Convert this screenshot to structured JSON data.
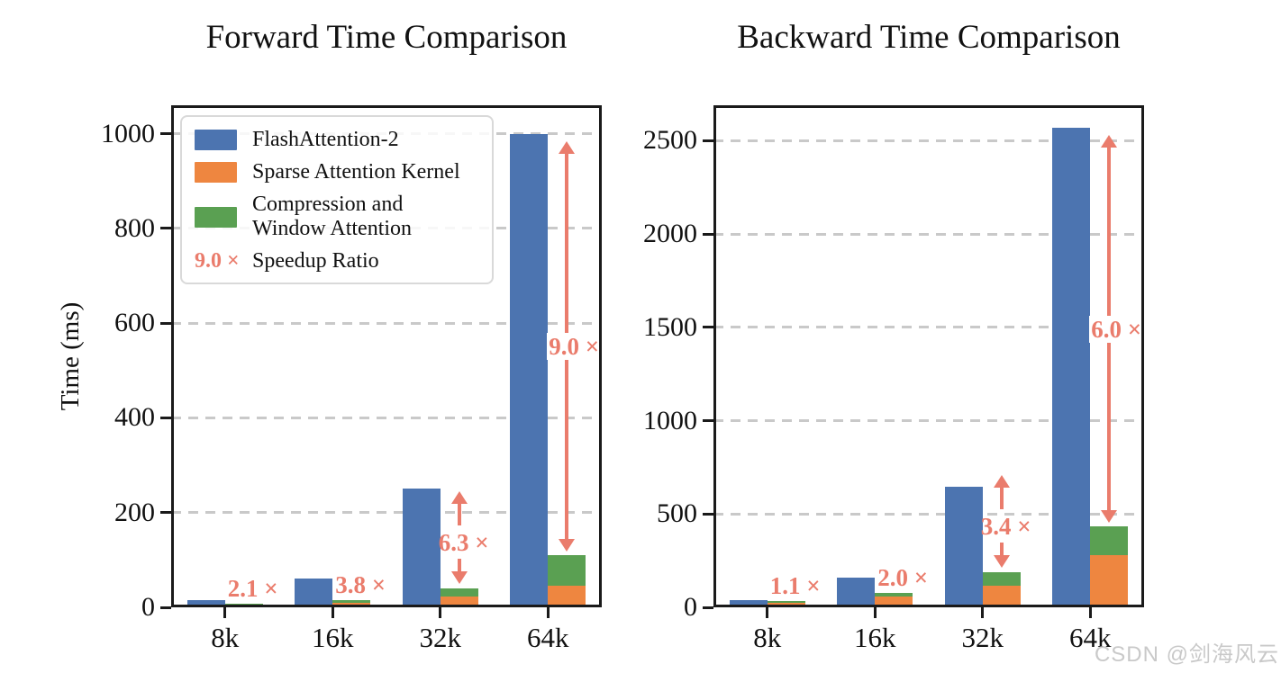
{
  "figure": {
    "background": "#ffffff"
  },
  "watermark": "CSDN @剑海风云",
  "palette": {
    "flash_blue": "#4C74B0",
    "sparse_orange": "#EE8640",
    "compress_green": "#5AA052",
    "speedup_salmon": "#EA7C6C",
    "grid_gray": "#c9c9c9",
    "axis_black": "#1a1a1a"
  },
  "legend": {
    "items": [
      {
        "type": "swatch",
        "color_key": "flash_blue",
        "label": "FlashAttention-2"
      },
      {
        "type": "swatch",
        "color_key": "sparse_orange",
        "label": "Sparse Attention Kernel"
      },
      {
        "type": "swatch",
        "color_key": "compress_green",
        "line1": "Compression and",
        "line2": "Window Attention"
      },
      {
        "type": "text",
        "swatch_text": "9.0 ×",
        "label": "Speedup Ratio"
      }
    ]
  },
  "chart_data": [
    {
      "type": "bar",
      "title": "Forward Time Comparison",
      "ylabel": "Time (ms)",
      "categories": [
        "8k",
        "16k",
        "32k",
        "64k"
      ],
      "yticks": [
        0,
        200,
        400,
        600,
        800,
        1000
      ],
      "ylim": [
        0,
        1060
      ],
      "grid": "dashed-horizontal",
      "legend_position": "upper-left",
      "series": [
        {
          "name": "FlashAttention-2",
          "color_key": "flash_blue",
          "stacked": false,
          "values": [
            15,
            60,
            250,
            1000
          ]
        },
        {
          "name": "Sparse Attention Kernel",
          "color_key": "sparse_orange",
          "stacked": true,
          "values": [
            4,
            10,
            22,
            45
          ]
        },
        {
          "name": "Compression and Window Attention",
          "color_key": "compress_green",
          "stacked": true,
          "values": [
            3,
            6,
            18,
            66
          ]
        }
      ],
      "speedups": [
        {
          "label": "2.1 ×",
          "arrow": "none"
        },
        {
          "label": "3.8 ×",
          "arrow": "none"
        },
        {
          "label": "6.3 ×",
          "arrow": "split"
        },
        {
          "label": "9.0 ×",
          "arrow": "long"
        }
      ]
    },
    {
      "type": "bar",
      "title": "Backward Time Comparison",
      "ylabel": "",
      "categories": [
        "8k",
        "16k",
        "32k",
        "64k"
      ],
      "yticks": [
        0,
        500,
        1000,
        1500,
        2000,
        2500
      ],
      "ylim": [
        0,
        2690
      ],
      "grid": "dashed-horizontal",
      "legend_position": "none",
      "series": [
        {
          "name": "FlashAttention-2",
          "color_key": "flash_blue",
          "stacked": false,
          "values": [
            40,
            160,
            645,
            2570
          ]
        },
        {
          "name": "Sparse Attention Kernel",
          "color_key": "sparse_orange",
          "stacked": true,
          "values": [
            25,
            57,
            116,
            280
          ]
        },
        {
          "name": "Compression and Window Attention",
          "color_key": "compress_green",
          "stacked": true,
          "values": [
            11,
            21,
            73,
            152
          ]
        }
      ],
      "speedups": [
        {
          "label": "1.1 ×",
          "arrow": "none"
        },
        {
          "label": "2.0 ×",
          "arrow": "none"
        },
        {
          "label": "3.4 ×",
          "arrow": "split"
        },
        {
          "label": "6.0 ×",
          "arrow": "long"
        }
      ]
    }
  ]
}
